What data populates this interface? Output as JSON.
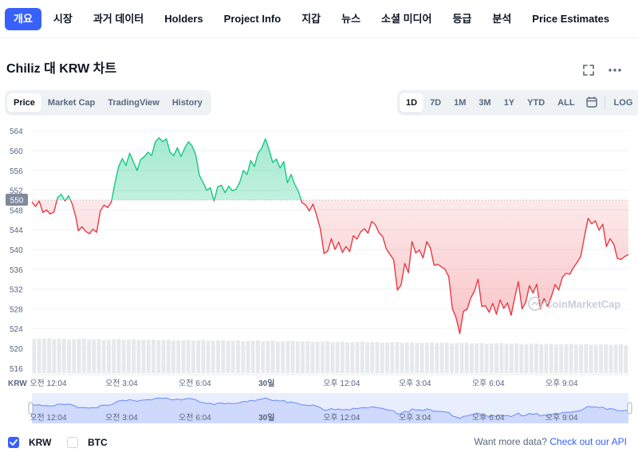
{
  "nav": {
    "tabs": [
      {
        "label": "개요",
        "active": true
      },
      {
        "label": "시장"
      },
      {
        "label": "과거 데이터"
      },
      {
        "label": "Holders"
      },
      {
        "label": "Project Info"
      },
      {
        "label": "지갑"
      },
      {
        "label": "뉴스"
      },
      {
        "label": "소셜 미디어"
      },
      {
        "label": "등급"
      },
      {
        "label": "분석"
      },
      {
        "label": "Price Estimates"
      }
    ]
  },
  "header": {
    "title": "Chiliz 대 KRW 차트",
    "expand_icon": "expand-icon",
    "more_icon": "more-icon"
  },
  "chart_tabs": [
    {
      "label": "Price",
      "active": true
    },
    {
      "label": "Market Cap"
    },
    {
      "label": "TradingView"
    },
    {
      "label": "History"
    }
  ],
  "range_tabs": [
    {
      "label": "1D",
      "active": true
    },
    {
      "label": "7D"
    },
    {
      "label": "1M"
    },
    {
      "label": "3M"
    },
    {
      "label": "1Y"
    },
    {
      "label": "YTD"
    },
    {
      "label": "ALL"
    }
  ],
  "calendar_icon": "calendar-icon",
  "log_label": "LOG",
  "chart_data": {
    "type": "area",
    "currency_label": "KRW",
    "baseline": 550,
    "baseline_label": "550",
    "ylim": [
      515,
      565
    ],
    "yticks": [
      516,
      520,
      524,
      528,
      532,
      536,
      540,
      544,
      548,
      552,
      556,
      560,
      564
    ],
    "xlim": [
      -0.6,
      23.8
    ],
    "x_ticks": [
      {
        "x": 0.067,
        "label": "오전 12:04"
      },
      {
        "x": 3.067,
        "label": "오전 3:04"
      },
      {
        "x": 6.067,
        "label": "오전 6:04"
      },
      {
        "x": 9.0,
        "label": "30일"
      },
      {
        "x": 12.067,
        "label": "오후 12:04"
      },
      {
        "x": 15.067,
        "label": "오후 3:04"
      },
      {
        "x": 18.067,
        "label": "오후 6:04"
      },
      {
        "x": 21.067,
        "label": "오후 9:04"
      }
    ],
    "points": [
      [
        -0.6,
        549.6
      ],
      [
        -0.45,
        548.7
      ],
      [
        -0.3,
        549.8
      ],
      [
        -0.15,
        547.5
      ],
      [
        0.0,
        548.0
      ],
      [
        0.15,
        547.2
      ],
      [
        0.3,
        547.6
      ],
      [
        0.45,
        550.5
      ],
      [
        0.6,
        551.2
      ],
      [
        0.75,
        549.8
      ],
      [
        0.9,
        550.9
      ],
      [
        1.05,
        549.2
      ],
      [
        1.2,
        546.5
      ],
      [
        1.3,
        543.8
      ],
      [
        1.45,
        544.6
      ],
      [
        1.6,
        543.7
      ],
      [
        1.75,
        543.2
      ],
      [
        1.9,
        544.1
      ],
      [
        2.05,
        543.5
      ],
      [
        2.2,
        547.8
      ],
      [
        2.35,
        549.0
      ],
      [
        2.5,
        548.5
      ],
      [
        2.65,
        549.6
      ],
      [
        2.8,
        553.5
      ],
      [
        2.95,
        556.8
      ],
      [
        3.1,
        558.4
      ],
      [
        3.25,
        557.0
      ],
      [
        3.4,
        559.5
      ],
      [
        3.55,
        557.8
      ],
      [
        3.7,
        556.0
      ],
      [
        3.85,
        558.2
      ],
      [
        4.0,
        558.8
      ],
      [
        4.15,
        559.7
      ],
      [
        4.3,
        559.0
      ],
      [
        4.45,
        561.8
      ],
      [
        4.6,
        562.6
      ],
      [
        4.75,
        561.8
      ],
      [
        4.9,
        562.4
      ],
      [
        5.05,
        559.7
      ],
      [
        5.2,
        559.0
      ],
      [
        5.35,
        560.6
      ],
      [
        5.5,
        558.8
      ],
      [
        5.65,
        560.5
      ],
      [
        5.8,
        561.8
      ],
      [
        5.95,
        561.0
      ],
      [
        6.1,
        559.2
      ],
      [
        6.25,
        555.0
      ],
      [
        6.4,
        553.6
      ],
      [
        6.55,
        552.0
      ],
      [
        6.7,
        552.5
      ],
      [
        6.85,
        549.8
      ],
      [
        7.0,
        552.7
      ],
      [
        7.15,
        553.0
      ],
      [
        7.3,
        551.5
      ],
      [
        7.45,
        552.8
      ],
      [
        7.6,
        551.9
      ],
      [
        7.75,
        552.2
      ],
      [
        7.9,
        553.6
      ],
      [
        8.05,
        556.0
      ],
      [
        8.2,
        555.2
      ],
      [
        8.35,
        558.0
      ],
      [
        8.5,
        556.8
      ],
      [
        8.65,
        559.5
      ],
      [
        8.8,
        560.5
      ],
      [
        8.95,
        562.4
      ],
      [
        9.1,
        560.2
      ],
      [
        9.25,
        557.6
      ],
      [
        9.4,
        558.3
      ],
      [
        9.55,
        556.5
      ],
      [
        9.7,
        557.8
      ],
      [
        9.85,
        553.5
      ],
      [
        10.0,
        555.2
      ],
      [
        10.15,
        553.2
      ],
      [
        10.3,
        551.8
      ],
      [
        10.45,
        549.5
      ],
      [
        10.6,
        549.0
      ],
      [
        10.75,
        547.8
      ],
      [
        10.9,
        549.2
      ],
      [
        11.05,
        546.9
      ],
      [
        11.2,
        544.2
      ],
      [
        11.35,
        539.2
      ],
      [
        11.5,
        539.7
      ],
      [
        11.65,
        542.2
      ],
      [
        11.8,
        540.0
      ],
      [
        11.95,
        541.5
      ],
      [
        12.1,
        539.4
      ],
      [
        12.25,
        540.6
      ],
      [
        12.4,
        539.6
      ],
      [
        12.55,
        542.8
      ],
      [
        12.7,
        542.1
      ],
      [
        12.85,
        543.6
      ],
      [
        13.0,
        544.2
      ],
      [
        13.15,
        543.3
      ],
      [
        13.3,
        545.7
      ],
      [
        13.45,
        545.0
      ],
      [
        13.6,
        543.4
      ],
      [
        13.75,
        542.6
      ],
      [
        13.9,
        540.1
      ],
      [
        14.05,
        539.0
      ],
      [
        14.2,
        537.9
      ],
      [
        14.35,
        531.8
      ],
      [
        14.5,
        532.8
      ],
      [
        14.65,
        537.2
      ],
      [
        14.8,
        535.3
      ],
      [
        14.95,
        541.6
      ],
      [
        15.1,
        539.3
      ],
      [
        15.25,
        539.9
      ],
      [
        15.4,
        538.3
      ],
      [
        15.55,
        541.6
      ],
      [
        15.7,
        540.3
      ],
      [
        15.85,
        536.8
      ],
      [
        16.0,
        537.0
      ],
      [
        16.15,
        536.5
      ],
      [
        16.3,
        536.0
      ],
      [
        16.45,
        534.5
      ],
      [
        16.6,
        528.0
      ],
      [
        16.75,
        526.2
      ],
      [
        16.9,
        523.0
      ],
      [
        17.05,
        527.5
      ],
      [
        17.2,
        527.9
      ],
      [
        17.35,
        530.2
      ],
      [
        17.5,
        531.6
      ],
      [
        17.65,
        534.0
      ],
      [
        17.8,
        528.5
      ],
      [
        17.95,
        528.6
      ],
      [
        18.1,
        527.3
      ],
      [
        18.25,
        529.1
      ],
      [
        18.4,
        526.9
      ],
      [
        18.55,
        529.8
      ],
      [
        18.7,
        528.1
      ],
      [
        18.85,
        529.2
      ],
      [
        19.0,
        526.7
      ],
      [
        19.15,
        530.3
      ],
      [
        19.3,
        533.5
      ],
      [
        19.45,
        528.0
      ],
      [
        19.6,
        529.3
      ],
      [
        19.75,
        532.7
      ],
      [
        19.9,
        531.2
      ],
      [
        20.05,
        533.0
      ],
      [
        20.2,
        528.0
      ],
      [
        20.35,
        530.1
      ],
      [
        20.5,
        528.5
      ],
      [
        20.65,
        530.5
      ],
      [
        20.8,
        532.9
      ],
      [
        20.95,
        531.8
      ],
      [
        21.1,
        534.4
      ],
      [
        21.25,
        535.2
      ],
      [
        21.4,
        535.0
      ],
      [
        21.55,
        536.3
      ],
      [
        21.7,
        537.4
      ],
      [
        21.85,
        538.6
      ],
      [
        22.0,
        542.6
      ],
      [
        22.15,
        546.3
      ],
      [
        22.3,
        545.2
      ],
      [
        22.45,
        545.8
      ],
      [
        22.6,
        543.9
      ],
      [
        22.75,
        545.1
      ],
      [
        22.9,
        540.6
      ],
      [
        23.05,
        542.2
      ],
      [
        23.2,
        541.1
      ],
      [
        23.35,
        538.2
      ],
      [
        23.5,
        538.0
      ],
      [
        23.65,
        538.6
      ],
      [
        23.8,
        539.0
      ]
    ],
    "volume": {
      "bar_count": 120,
      "start_level": 0.55,
      "end_level": 0.45
    },
    "up_color": "#16c784",
    "down_color": "#ea3943",
    "watermark": "CoinMarketCap"
  },
  "navigator": {
    "labels": [
      "오전 12:04",
      "오전 3:04",
      "오전 6:04",
      "30일",
      "오후 12:04",
      "오후 3:04",
      "오후 6:04",
      "오후 9:04"
    ]
  },
  "footer": {
    "legend": [
      {
        "label": "KRW",
        "checked": true
      },
      {
        "label": "BTC",
        "checked": false
      }
    ],
    "note": "Want more data?",
    "link": "Check out our API"
  }
}
